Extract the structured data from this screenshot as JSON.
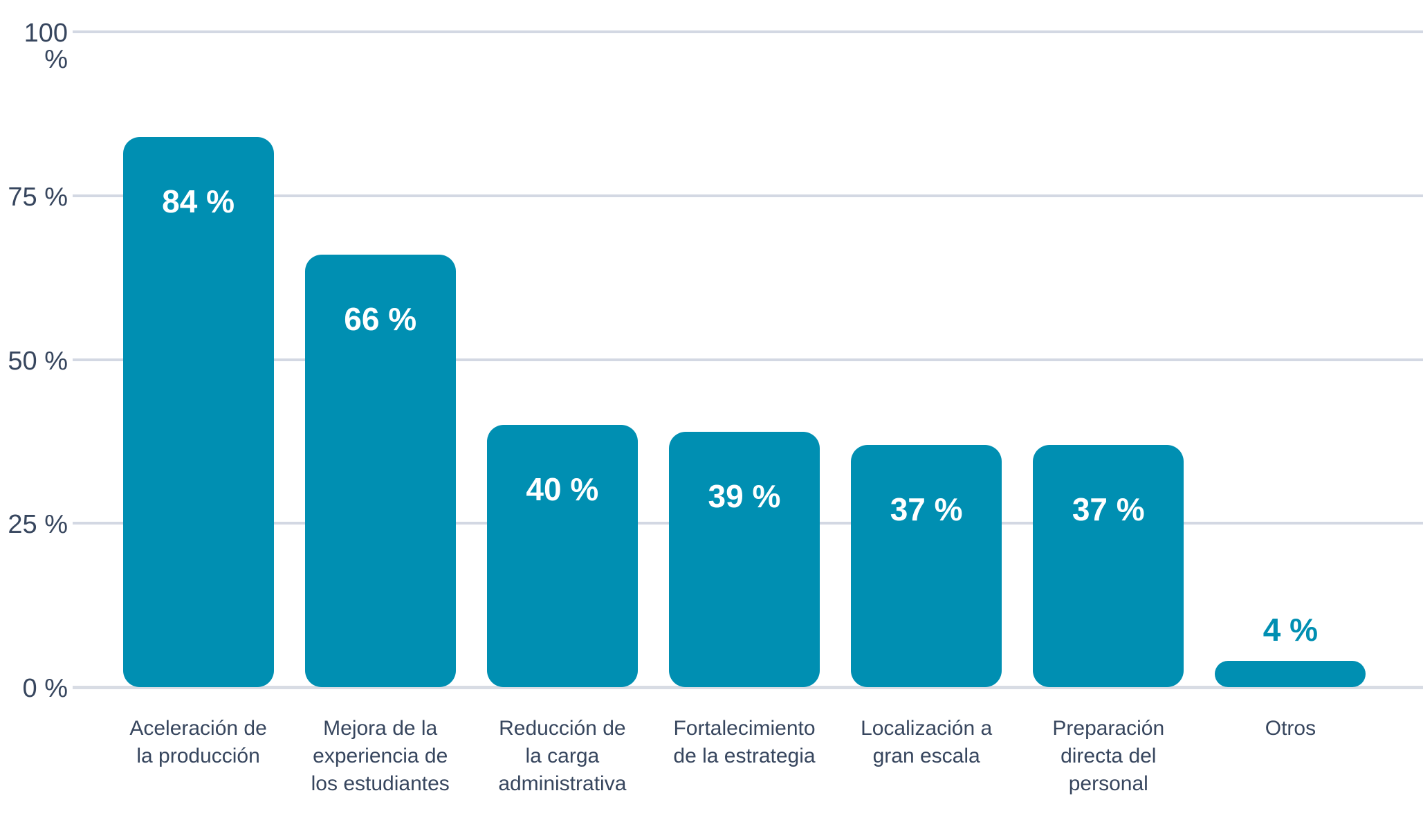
{
  "colors": {
    "background": "#FFFFFF",
    "bar": "#008FB2",
    "grid_line": "#D3D8E3",
    "baseline": "#D8DCE4",
    "axis_text": "#37465E",
    "value_label_inside": "#FFFFFF",
    "value_label_outside": "#008FB2"
  },
  "y_axis": {
    "ticks": [
      {
        "label": "100 %",
        "value": 100
      },
      {
        "label": "75 %",
        "value": 75
      },
      {
        "label": "50 %",
        "value": 50
      },
      {
        "label": "25 %",
        "value": 25
      },
      {
        "label": "0 %",
        "value": 0
      }
    ]
  },
  "chart_data": {
    "type": "bar",
    "title": "",
    "xlabel": "",
    "ylabel": "",
    "ylim": [
      0,
      100
    ],
    "grid": true,
    "legend": false,
    "bar_color": "#008FB2",
    "categories": [
      "Aceleración de la producción",
      "Mejora de la experiencia de los estudiantes",
      "Reducción de la carga administrativa",
      "Fortalecimiento de la estrategia",
      "Localización a gran escala",
      "Preparación directa del personal",
      "Otros"
    ],
    "values": [
      84,
      66,
      40,
      39,
      37,
      37,
      4
    ],
    "bars": [
      {
        "category": "Aceleración de\nla producción",
        "value": 84,
        "value_label": "84 %",
        "label_position": "inside"
      },
      {
        "category": "Mejora de la\nexperiencia de\nlos estudiantes",
        "value": 66,
        "value_label": "66 %",
        "label_position": "inside"
      },
      {
        "category": "Reducción de\nla carga\nadministrativa",
        "value": 40,
        "value_label": "40 %",
        "label_position": "inside"
      },
      {
        "category": "Fortalecimiento\nde la estrategia",
        "value": 39,
        "value_label": "39 %",
        "label_position": "inside"
      },
      {
        "category": "Localización a\ngran escala",
        "value": 37,
        "value_label": "37 %",
        "label_position": "inside"
      },
      {
        "category": "Preparación\ndirecta del\npersonal",
        "value": 37,
        "value_label": "37 %",
        "label_position": "inside"
      },
      {
        "category": "Otros",
        "value": 4,
        "value_label": "4 %",
        "label_position": "above"
      }
    ]
  }
}
